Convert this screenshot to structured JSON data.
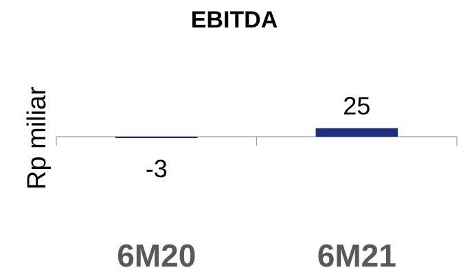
{
  "chart_data": {
    "type": "bar",
    "title": "EBITDA",
    "ylabel": "Rp miliar",
    "xlabel": "",
    "categories": [
      "6M20",
      "6M21"
    ],
    "values": [
      -3,
      25
    ],
    "data_labels": [
      "-3",
      "25"
    ],
    "ylim": [
      -3,
      25
    ],
    "grid": false,
    "legend": "none",
    "colors": {
      "bar": "#1f2d7f",
      "axis": "#9a9a9a",
      "category_text": "#595959",
      "text": "#000000"
    }
  }
}
